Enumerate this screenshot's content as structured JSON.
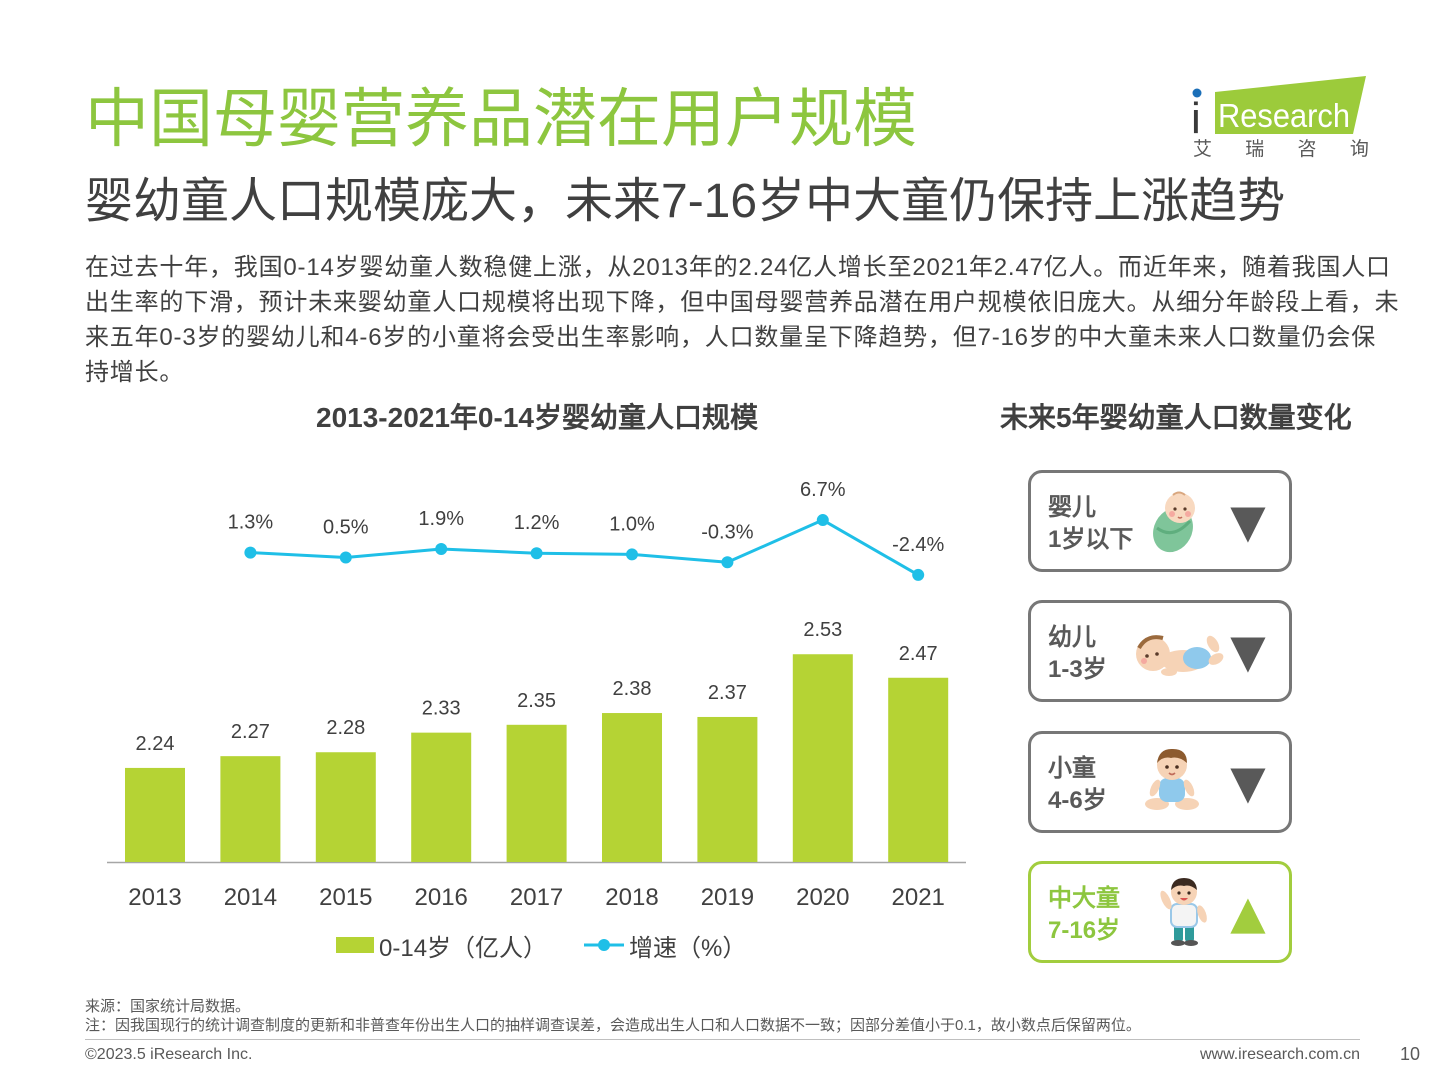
{
  "header": {
    "title": "中国母婴营养品潜在用户规模",
    "subtitle": "婴幼童人口规模庞大，未来7-16岁中大童仍保持上涨趋势"
  },
  "logo": {
    "prefix": "i",
    "name": "Research",
    "cn_name": "艾 瑞 咨 询"
  },
  "intro": {
    "lines": [
      "在过去十年，我国0-14岁婴幼童人数稳健上涨，从2013年的2.24亿人增长至2021年2.47亿人。而近年来，随着我国人口",
      "出生率的下滑，预计未来婴幼童人口规模将出现下降，但中国母婴营养品潜在用户规模依旧庞大。从细分年龄段上看，未",
      "来五年0-3岁的婴幼儿和4-6岁的小童将会受出生率影响，人口数量呈下降趋势，但7-16岁的中大童未来人口数量仍会保",
      "持增长。"
    ]
  },
  "chart_data": {
    "type": "bar",
    "title": "2013-2021年0-14岁婴幼童人口规模",
    "categories": [
      "2013",
      "2014",
      "2015",
      "2016",
      "2017",
      "2018",
      "2019",
      "2020",
      "2021"
    ],
    "series": [
      {
        "name": "0-14岁（亿人）",
        "type": "bar",
        "values": [
          2.24,
          2.27,
          2.28,
          2.33,
          2.35,
          2.38,
          2.37,
          2.53,
          2.47
        ]
      },
      {
        "name": "增速（%）",
        "type": "line",
        "values": [
          null,
          1.3,
          0.5,
          1.9,
          1.2,
          1.0,
          -0.3,
          6.7,
          -2.4
        ]
      }
    ],
    "ylim": [
      2.0,
      3.0
    ],
    "y2lim": [
      -50,
      15
    ],
    "grid": false,
    "legend_position": "bottom"
  },
  "forecast": {
    "title": "未来5年婴幼童人口数量变化",
    "groups": [
      {
        "name": "婴儿",
        "age": "1岁以下",
        "trend_symbol": "▼",
        "icon": "swaddled-baby-icon"
      },
      {
        "name": "幼儿",
        "age": "1-3岁",
        "trend_symbol": "▼",
        "icon": "lying-baby-icon"
      },
      {
        "name": "小童",
        "age": "4-6岁",
        "trend_symbol": "▼",
        "icon": "sitting-child-icon"
      },
      {
        "name": "中大童",
        "age": "7-16岁",
        "trend_symbol": "▲",
        "icon": "standing-child-icon"
      }
    ]
  },
  "footer": {
    "source": "来源：国家统计局数据。",
    "note": "注：因我国现行的统计调查制度的更新和非普查年份出生人口的抽样调查误差，会造成出生人口和人口数据不一致；因部分差值小于0.1，故小数点后保留两位。",
    "copyright": "©2023.5 iResearch Inc.",
    "website": "www.iresearch.com.cn",
    "page_number": "10"
  },
  "colors": {
    "title_green": "#8dc63f",
    "bar_green": "#b5d334",
    "line_cyan": "#1fbfe7",
    "down_gray": "#595959",
    "up_green": "#a2cd3e",
    "card_border": "#777777",
    "logo_green": "#9ccb3b",
    "logo_dot_blue": "#1b6fb8"
  }
}
